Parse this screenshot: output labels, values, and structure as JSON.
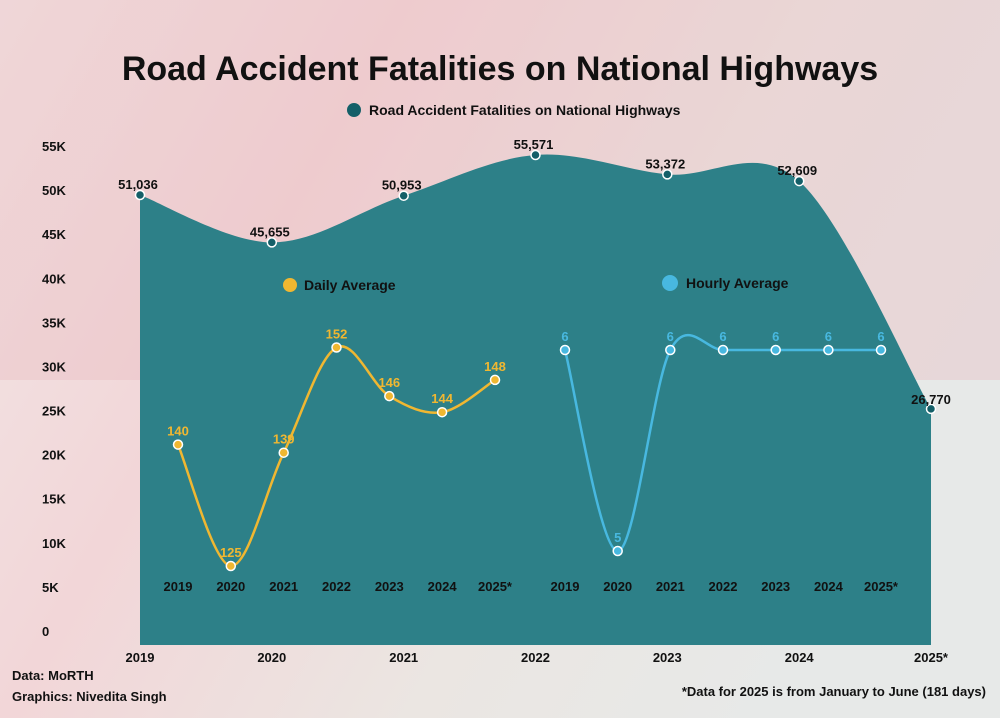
{
  "colors": {
    "area": "#2d8088",
    "marker": "#145f68",
    "daily": "#f0b731",
    "hourly": "#48b8e0",
    "text": "#111111"
  },
  "chart_data": [
    {
      "type": "area",
      "title": "Road Accident Fatalities on National Highways",
      "legend": "Road Accident Fatalities on National Highways",
      "legend_position": "top-center",
      "categories": [
        "2019",
        "2020",
        "2021",
        "2022",
        "2023",
        "2024",
        "2025*"
      ],
      "values": [
        51036,
        45655,
        50953,
        55571,
        53372,
        52609,
        26770
      ],
      "value_labels": [
        "51,036",
        "45,655",
        "50,953",
        "55,571",
        "53,372",
        "52,609",
        "26,770"
      ],
      "y_ticks": [
        "0",
        "5K",
        "10K",
        "15K",
        "20K",
        "25K",
        "30K",
        "35K",
        "40K",
        "45K",
        "50K",
        "55K"
      ],
      "ylim": [
        0,
        55000
      ],
      "grid": false
    },
    {
      "type": "line",
      "legend": "Daily Average",
      "categories": [
        "2019",
        "2020",
        "2021",
        "2022",
        "2023",
        "2024",
        "2025*"
      ],
      "values": [
        140,
        125,
        139,
        152,
        146,
        144,
        148
      ],
      "value_labels": [
        "140",
        "125",
        "139",
        "152",
        "146",
        "144",
        "148"
      ]
    },
    {
      "type": "line",
      "legend": "Hourly Average",
      "categories": [
        "2019",
        "2020",
        "2021",
        "2022",
        "2023",
        "2024",
        "2025*"
      ],
      "values": [
        6,
        5,
        6,
        6,
        6,
        6,
        6
      ],
      "value_labels": [
        "6",
        "5",
        "6",
        "6",
        "6",
        "6",
        "6"
      ]
    }
  ],
  "footer": {
    "source": "Data: MoRTH",
    "credit": "Graphics: Nivedita Singh",
    "note": "*Data for 2025 is from January to June (181 days)"
  }
}
